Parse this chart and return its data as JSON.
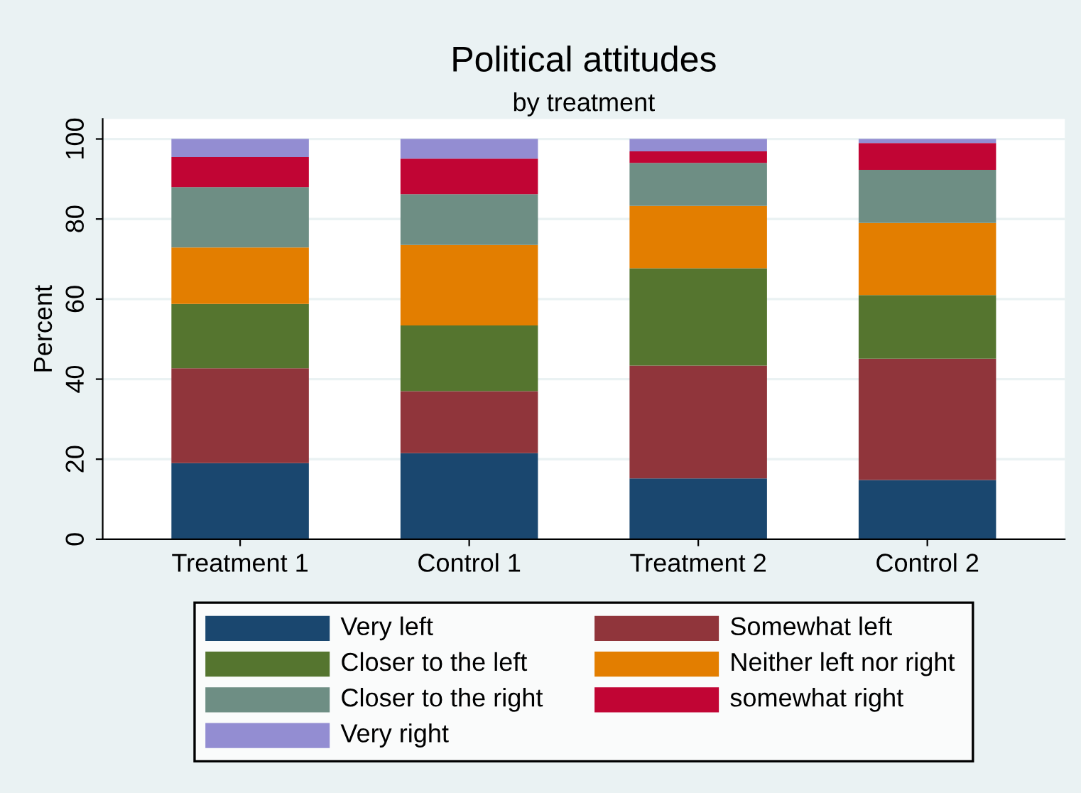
{
  "chart_data": {
    "type": "bar",
    "title": "Political attitudes",
    "subtitle": "by treatment",
    "ylabel": "Percent",
    "stacked": true,
    "categories": [
      "Treatment 1",
      "Control 1",
      "Treatment 2",
      "Control 2"
    ],
    "series": [
      {
        "name": "Very left",
        "color": "#1a476f",
        "values": [
          19.0,
          21.5,
          15.2,
          14.8
        ]
      },
      {
        "name": "Somewhat left",
        "color": "#90353b",
        "values": [
          23.7,
          15.5,
          28.2,
          30.3
        ]
      },
      {
        "name": "Closer to the left",
        "color": "#55752f",
        "values": [
          16.1,
          16.4,
          24.3,
          15.9
        ]
      },
      {
        "name": "Neither left nor right",
        "color": "#e37e00",
        "values": [
          14.1,
          20.1,
          15.6,
          18.0
        ]
      },
      {
        "name": "Closer to the right",
        "color": "#6e8e84",
        "values": [
          15.1,
          12.7,
          10.7,
          13.3
        ]
      },
      {
        "name": "somewhat right",
        "color": "#c10534",
        "values": [
          7.5,
          8.9,
          2.9,
          6.7
        ]
      },
      {
        "name": "Very right",
        "color": "#938dd2",
        "values": [
          4.5,
          4.9,
          3.1,
          1.0
        ]
      }
    ],
    "ylim": [
      0,
      105
    ],
    "yticks": [
      0,
      20,
      40,
      60,
      80,
      100
    ],
    "grid": "y",
    "legend": "bottom"
  }
}
